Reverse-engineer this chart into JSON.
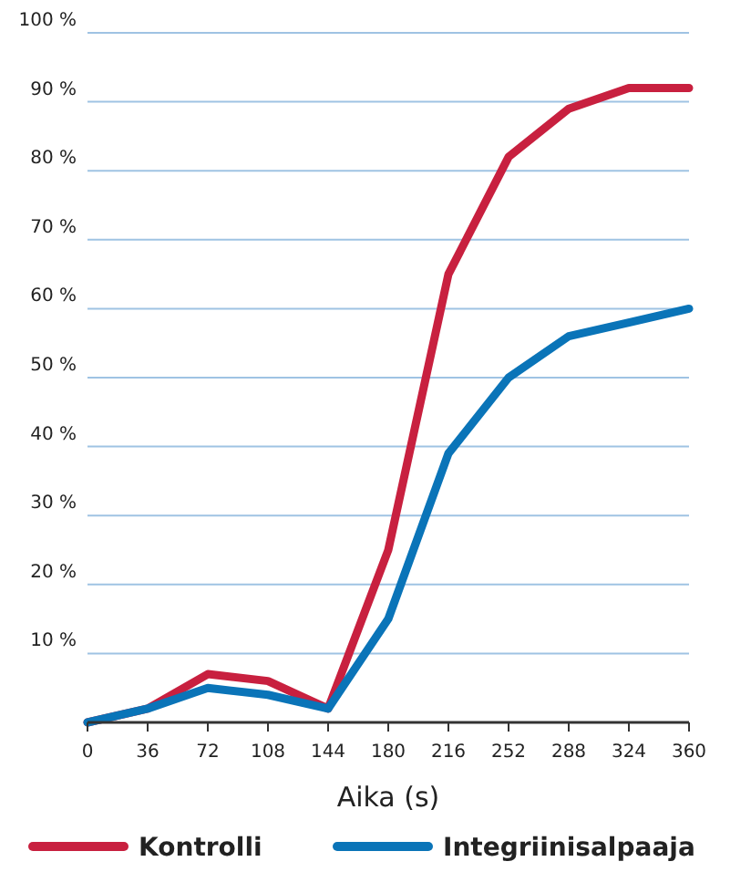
{
  "chart_data": {
    "type": "line",
    "xlabel": "Aika (s)",
    "x": [
      0,
      36,
      72,
      108,
      144,
      180,
      216,
      252,
      288,
      324,
      360
    ],
    "xlim": [
      0,
      360
    ],
    "xticks": [
      0,
      36,
      72,
      108,
      144,
      180,
      216,
      252,
      288,
      324,
      360
    ],
    "ylim": [
      0,
      100
    ],
    "yticks": [
      {
        "value": 10,
        "label": "10 %"
      },
      {
        "value": 20,
        "label": "20 %"
      },
      {
        "value": 30,
        "label": "30 %"
      },
      {
        "value": 40,
        "label": "40 %"
      },
      {
        "value": 50,
        "label": "50 %"
      },
      {
        "value": 60,
        "label": "60 %"
      },
      {
        "value": 70,
        "label": "70 %"
      },
      {
        "value": 80,
        "label": "80 %"
      },
      {
        "value": 90,
        "label": "90 %"
      },
      {
        "value": 100,
        "label": "100 %"
      }
    ],
    "grid": "y",
    "legend": "bottom",
    "marker": "none",
    "line_style": "solid",
    "series": [
      {
        "name": "Kontrolli",
        "color": "#c8203f",
        "values": [
          0,
          2,
          7,
          6,
          2,
          25,
          65,
          82,
          89,
          92,
          92
        ]
      },
      {
        "name": "Integriinisalpaaja",
        "color": "#0a74b8",
        "values": [
          0,
          2,
          5,
          4,
          2,
          15,
          39,
          50,
          56,
          58,
          60
        ]
      }
    ]
  }
}
